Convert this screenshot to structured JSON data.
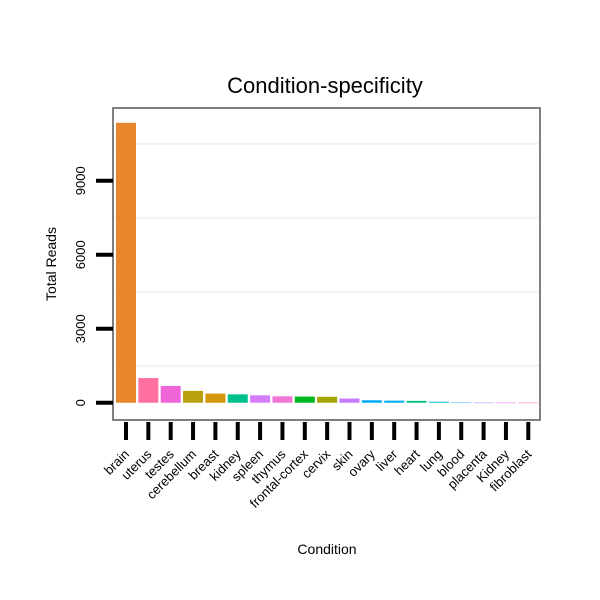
{
  "chart_data": {
    "type": "bar",
    "title": "Condition-specificity",
    "xlabel": "Condition",
    "ylabel": "Total Reads",
    "ylim": [
      -700,
      11950
    ],
    "yticks": [
      0,
      3000,
      6000,
      9000
    ],
    "ytick_labels": [
      "0",
      "3000",
      "6000",
      "9000"
    ],
    "categories": [
      "brain",
      "uterus",
      "testes",
      "cerebellum",
      "breast",
      "kidney",
      "spleen",
      "thymus",
      "frontal-cortex",
      "cervix",
      "skin",
      "ovary",
      "liver",
      "heart",
      "lung",
      "blood",
      "placenta",
      "Kidney",
      "fibroblast"
    ],
    "values": [
      11350,
      1000,
      680,
      480,
      370,
      340,
      300,
      260,
      250,
      240,
      170,
      100,
      85,
      75,
      40,
      8,
      5,
      3,
      2
    ],
    "colors": [
      "#E8862E",
      "#FF6FA2",
      "#F066D9",
      "#B9A00D",
      "#D4960A",
      "#00C08D",
      "#D57DFA",
      "#F076D6",
      "#00B81F",
      "#A3A500",
      "#C77CFF",
      "#00A9FF",
      "#00B0F6",
      "#00BF7D",
      "#00BFC4",
      "#35A2FF",
      "#9590FF",
      "#E76BF3",
      "#FF62BC"
    ],
    "grid": true,
    "legend": "none"
  }
}
